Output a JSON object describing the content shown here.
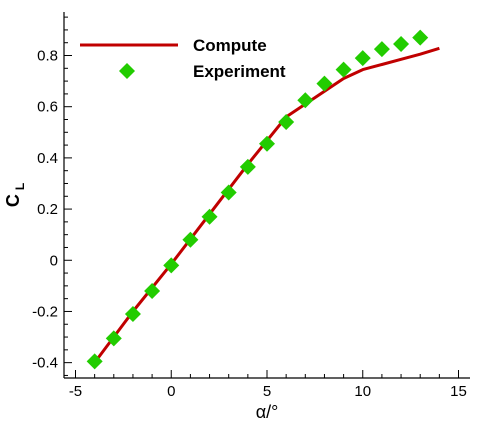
{
  "chart_data": {
    "type": "line",
    "xlabel": "α/°",
    "ylabel_main": "C",
    "ylabel_sub": "L",
    "xlim": [
      -5.6,
      15.6
    ],
    "ylim": [
      -0.46,
      0.97
    ],
    "xticks": [
      -5,
      0,
      5,
      10,
      15
    ],
    "yticks": [
      -0.4,
      -0.2,
      0,
      0.2,
      0.4,
      0.6,
      0.8
    ],
    "xtick_labels": [
      "-5",
      "0",
      "5",
      "10",
      "15"
    ],
    "ytick_labels": [
      "-0.4",
      "-0.2",
      "0",
      "0.2",
      "0.4",
      "0.6",
      "0.8"
    ],
    "grid": false,
    "legend_position": "top-left",
    "series": [
      {
        "name": "Compute",
        "style": "line",
        "color": "#c00000",
        "x": [
          -4,
          -2,
          0,
          2,
          4,
          6,
          8,
          9,
          10,
          11,
          12,
          13,
          14
        ],
        "y": [
          -0.4,
          -0.2,
          -0.015,
          0.18,
          0.375,
          0.56,
          0.66,
          0.71,
          0.745,
          0.765,
          0.785,
          0.805,
          0.828
        ]
      },
      {
        "name": "Experiment",
        "style": "marker",
        "color": "#22cc00",
        "x": [
          -4,
          -3,
          -2,
          -1,
          0,
          1,
          2,
          3,
          4,
          5,
          6,
          7,
          8,
          9,
          10,
          11,
          12,
          13
        ],
        "y": [
          -0.395,
          -0.305,
          -0.21,
          -0.12,
          -0.02,
          0.08,
          0.17,
          0.265,
          0.365,
          0.455,
          0.54,
          0.625,
          0.69,
          0.745,
          0.79,
          0.825,
          0.845,
          0.87
        ]
      }
    ]
  }
}
